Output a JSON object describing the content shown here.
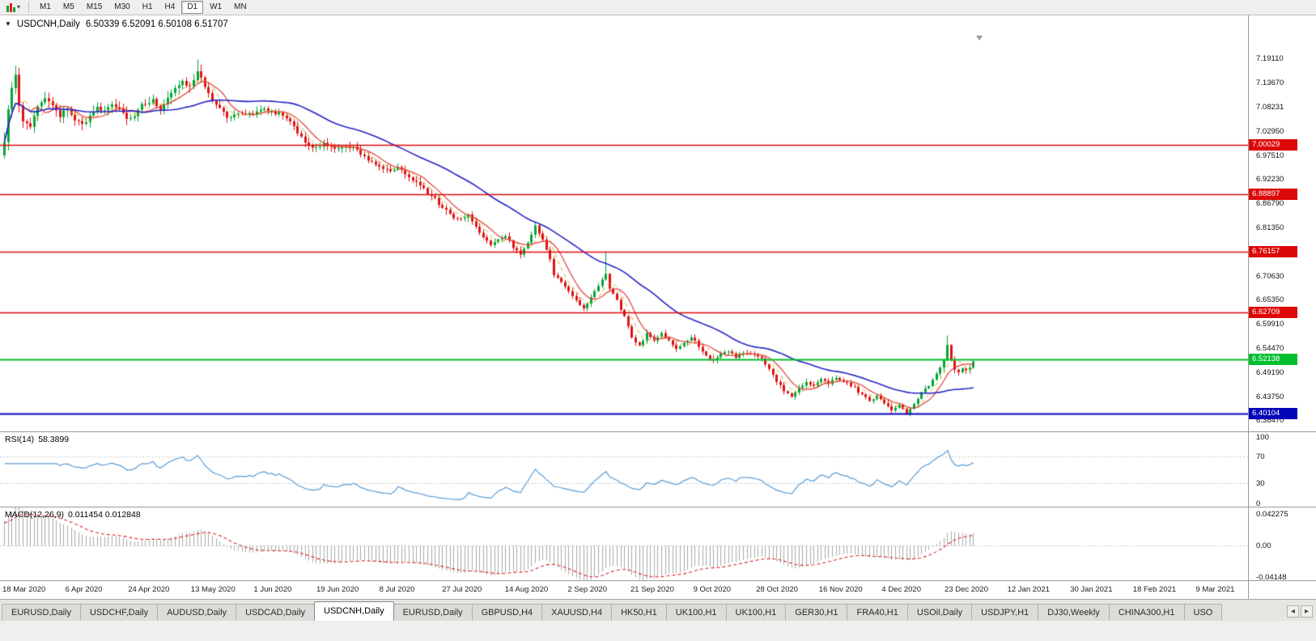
{
  "icons": {
    "dropdown_caret": "▾",
    "oneclick_arrow": "▼"
  },
  "toolbar": {
    "timeframes": [
      "M1",
      "M5",
      "M15",
      "M30",
      "H1",
      "H4",
      "D1",
      "W1",
      "MN"
    ],
    "active_timeframe": "D1"
  },
  "tabs": {
    "items": [
      "EURUSD,Daily",
      "USDCHF,Daily",
      "AUDUSD,Daily",
      "USDCAD,Daily",
      "USDCNH,Daily",
      "EURUSD,Daily",
      "GBPUSD,H4",
      "XAUUSD,H4",
      "HK50,H1",
      "UK100,H1",
      "UK100,H1",
      "GER30,H1",
      "FRA40,H1",
      "USOil,Daily",
      "USDJPY,H1",
      "DJ30,Weekly",
      "CHINA300,H1",
      "USO"
    ],
    "active_index": 4,
    "scroll_left": "◂",
    "scroll_right": "▸"
  },
  "colors": {
    "candle_up": "#00a638",
    "candle_down": "#e01212",
    "ma_blue": "#2424c8",
    "ma_red": "#e23a3a",
    "ma_yellow": "#cfae1f",
    "rsi": "#5a9bd4",
    "macd_hist": "#a8a8a8",
    "macd_signal": "#dd2222",
    "guide": "#c9c9c9"
  },
  "chart_data": {
    "type": "candlestick",
    "symbol": "USDCNH",
    "timeframe": "Daily",
    "symbol_label": "USDCNH,Daily",
    "quote_text": "6.50339 6.52091 6.50108 6.51707",
    "current_ohlc": {
      "open": 6.50339,
      "high": 6.52091,
      "low": 6.50108,
      "close": 6.51707
    },
    "price_axis_labels": [
      "7.19110",
      "7.13670",
      "7.08231",
      "7.02950",
      "6.97510",
      "6.92230",
      "6.86790",
      "6.81350",
      "6.76070",
      "6.70630",
      "6.65350",
      "6.59910",
      "6.54470",
      "6.49190",
      "6.43750",
      "6.38470"
    ],
    "date_axis_labels": [
      "18 Mar 2020",
      "6 Apr 2020",
      "24 Apr 2020",
      "13 May 2020",
      "1 Jun 2020",
      "19 Jun 2020",
      "8 Jul 2020",
      "27 Jul 2020",
      "14 Aug 2020",
      "2 Sep 2020",
      "21 Sep 2020",
      "9 Oct 2020",
      "28 Oct 2020",
      "16 Nov 2020",
      "4 Dec 2020",
      "23 Dec 2020",
      "12 Jan 2021",
      "30 Jan 2021",
      "18 Feb 2021",
      "9 Mar 2021"
    ],
    "horizontal_levels": [
      {
        "price": 7.00029,
        "label": "7.00029",
        "color": "#dd0808",
        "width": 1.4
      },
      {
        "price": 6.88897,
        "label": "6.88897",
        "color": "#dd0808",
        "width": 1.4
      },
      {
        "price": 6.76157,
        "label": "6.76157",
        "color": "#dd0808",
        "width": 1.4
      },
      {
        "price": 6.62709,
        "label": "6.62709",
        "color": "#dd0808",
        "width": 1.4
      },
      {
        "price": 6.52138,
        "label": "6.52138",
        "color": "#00bf2f",
        "width": 2
      },
      {
        "price": 6.40104,
        "label": "6.40104",
        "color": "#0404b8",
        "width": 2
      }
    ],
    "bar_count": 262,
    "anchor_closes": [
      [
        0,
        7.01
      ],
      [
        1,
        7.075
      ],
      [
        2,
        7.125
      ],
      [
        3,
        7.15
      ],
      [
        4,
        7.09
      ],
      [
        5,
        7.055
      ],
      [
        7,
        7.045
      ],
      [
        9,
        7.09
      ],
      [
        11,
        7.105
      ],
      [
        13,
        7.09
      ],
      [
        15,
        7.062
      ],
      [
        17,
        7.082
      ],
      [
        19,
        7.058
      ],
      [
        21,
        7.045
      ],
      [
        23,
        7.065
      ],
      [
        25,
        7.08
      ],
      [
        27,
        7.075
      ],
      [
        29,
        7.092
      ],
      [
        31,
        7.078
      ],
      [
        33,
        7.058
      ],
      [
        35,
        7.068
      ],
      [
        37,
        7.088
      ],
      [
        40,
        7.098
      ],
      [
        42,
        7.082
      ],
      [
        44,
        7.102
      ],
      [
        46,
        7.122
      ],
      [
        48,
        7.142
      ],
      [
        50,
        7.128
      ],
      [
        52,
        7.162
      ],
      [
        54,
        7.132
      ],
      [
        56,
        7.102
      ],
      [
        58,
        7.082
      ],
      [
        60,
        7.062
      ],
      [
        63,
        7.072
      ],
      [
        67,
        7.068
      ],
      [
        70,
        7.078
      ],
      [
        73,
        7.072
      ],
      [
        76,
        7.062
      ],
      [
        78,
        7.038
      ],
      [
        81,
        7.008
      ],
      [
        83,
        6.993
      ],
      [
        86,
        7.003
      ],
      [
        89,
        6.988
      ],
      [
        92,
        6.998
      ],
      [
        94,
        6.993
      ],
      [
        97,
        6.973
      ],
      [
        100,
        6.958
      ],
      [
        103,
        6.943
      ],
      [
        106,
        6.948
      ],
      [
        108,
        6.938
      ],
      [
        110,
        6.923
      ],
      [
        112,
        6.913
      ],
      [
        114,
        6.893
      ],
      [
        116,
        6.878
      ],
      [
        118,
        6.858
      ],
      [
        121,
        6.838
      ],
      [
        123,
        6.833
      ],
      [
        125,
        6.843
      ],
      [
        127,
        6.818
      ],
      [
        129,
        6.793
      ],
      [
        131,
        6.778
      ],
      [
        133,
        6.788
      ],
      [
        135,
        6.798
      ],
      [
        137,
        6.773
      ],
      [
        139,
        6.758
      ],
      [
        141,
        6.783
      ],
      [
        143,
        6.818
      ],
      [
        145,
        6.788
      ],
      [
        147,
        6.742
      ],
      [
        148,
        6.712
      ],
      [
        150,
        6.692
      ],
      [
        152,
        6.672
      ],
      [
        154,
        6.652
      ],
      [
        156,
        6.638
      ],
      [
        158,
        6.658
      ],
      [
        160,
        6.688
      ],
      [
        162,
        6.712
      ],
      [
        163,
        6.682
      ],
      [
        165,
        6.652
      ],
      [
        167,
        6.618
      ],
      [
        169,
        6.572
      ],
      [
        171,
        6.552
      ],
      [
        173,
        6.578
      ],
      [
        175,
        6.562
      ],
      [
        177,
        6.578
      ],
      [
        179,
        6.562
      ],
      [
        181,
        6.548
      ],
      [
        183,
        6.558
      ],
      [
        185,
        6.572
      ],
      [
        187,
        6.552
      ],
      [
        189,
        6.528
      ],
      [
        191,
        6.518
      ],
      [
        193,
        6.532
      ],
      [
        195,
        6.542
      ],
      [
        197,
        6.528
      ],
      [
        199,
        6.538
      ],
      [
        202,
        6.532
      ],
      [
        204,
        6.522
      ],
      [
        206,
        6.502
      ],
      [
        208,
        6.472
      ],
      [
        210,
        6.452
      ],
      [
        212,
        6.438
      ],
      [
        214,
        6.458
      ],
      [
        216,
        6.472
      ],
      [
        218,
        6.462
      ],
      [
        220,
        6.478
      ],
      [
        222,
        6.468
      ],
      [
        224,
        6.482
      ],
      [
        226,
        6.472
      ],
      [
        229,
        6.458
      ],
      [
        231,
        6.442
      ],
      [
        233,
        6.428
      ],
      [
        235,
        6.442
      ],
      [
        237,
        6.422
      ],
      [
        239,
        6.408
      ],
      [
        241,
        6.418
      ],
      [
        243,
        6.403
      ],
      [
        245,
        6.423
      ],
      [
        247,
        6.448
      ],
      [
        249,
        6.462
      ],
      [
        251,
        6.488
      ],
      [
        253,
        6.518
      ],
      [
        254,
        6.552
      ],
      [
        255,
        6.522
      ],
      [
        256,
        6.498
      ],
      [
        257,
        6.494
      ],
      [
        258,
        6.504
      ],
      [
        259,
        6.497
      ],
      [
        260,
        6.504
      ],
      [
        261,
        6.517
      ]
    ],
    "wick_events": [
      {
        "i": 52,
        "high": 7.1905
      },
      {
        "i": 162,
        "high": 6.7613
      },
      {
        "i": 243,
        "low": 6.3982
      },
      {
        "i": 254,
        "high": 6.5752
      }
    ],
    "indicators": {
      "overlays": [
        {
          "name": "sma-slow",
          "period": 34,
          "color_key": "ma_blue",
          "width": 1.6
        },
        {
          "name": "sma-fast",
          "period": 8,
          "color_key": "ma_red",
          "width": 1.2
        },
        {
          "name": "sma-short",
          "period": 5,
          "color_key": "ma_yellow",
          "width": 1,
          "dashed": true
        }
      ],
      "rsi": {
        "label": "RSI(14)",
        "period": 14,
        "value_text": "58.3899",
        "scale_labels": [
          "100",
          "70",
          "30",
          "0"
        ],
        "guide_levels": [
          70,
          30
        ]
      },
      "macd": {
        "label": "MACD(12,26,9)",
        "fast": 12,
        "slow": 26,
        "signal": 9,
        "value_text": "0.011454 0.012848",
        "scale_labels": [
          "0.042275",
          "0.00",
          "-0.04148"
        ],
        "scale_top": 0.042275,
        "scale_bottom": -0.04148
      }
    }
  }
}
